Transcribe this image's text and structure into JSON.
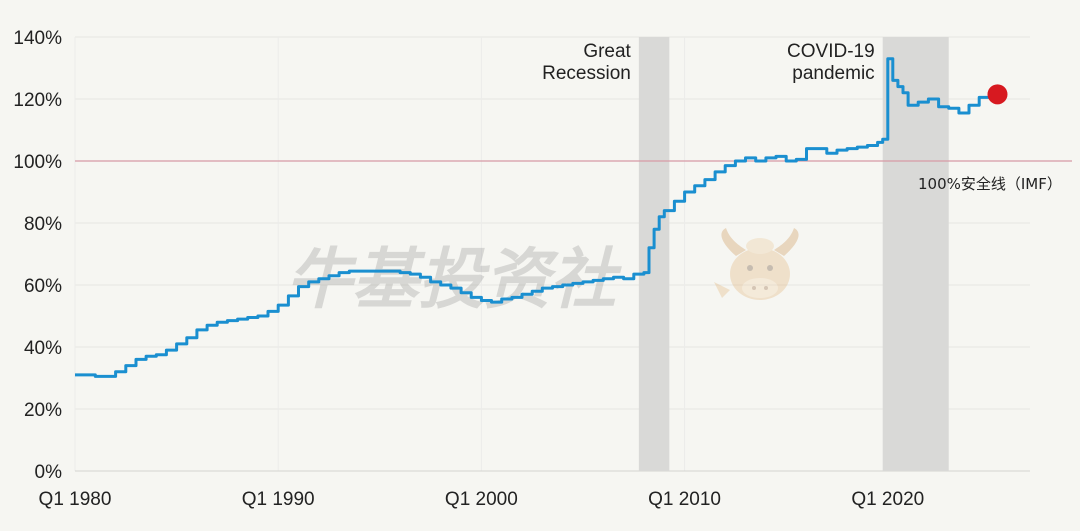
{
  "chart_data": {
    "type": "line",
    "x_tick_labels": [
      "Q1 1980",
      "Q1 1990",
      "Q1 2000",
      "Q1 2010",
      "Q1 2020"
    ],
    "x_ticks": [
      1980,
      1990,
      2000,
      2010,
      2020
    ],
    "xlim": [
      1980,
      2027
    ],
    "y_tick_labels": [
      "0%",
      "20%",
      "40%",
      "60%",
      "80%",
      "100%",
      "120%",
      "140%"
    ],
    "y_ticks": [
      0,
      20,
      40,
      60,
      80,
      100,
      120,
      140
    ],
    "ylim": [
      0,
      140
    ],
    "grid": true,
    "series": [
      {
        "color": "#1a8fd0",
        "x": [
          1980.0,
          1980.5,
          1981.0,
          1981.5,
          1982.0,
          1982.5,
          1983.0,
          1983.5,
          1984.0,
          1984.5,
          1985.0,
          1985.5,
          1986.0,
          1986.5,
          1987.0,
          1987.5,
          1988.0,
          1988.5,
          1989.0,
          1989.5,
          1990.0,
          1990.5,
          1991.0,
          1991.5,
          1992.0,
          1992.5,
          1993.0,
          1993.5,
          1994.0,
          1994.5,
          1995.0,
          1995.5,
          1996.0,
          1996.5,
          1997.0,
          1997.5,
          1998.0,
          1998.5,
          1999.0,
          1999.5,
          2000.0,
          2000.5,
          2001.0,
          2001.5,
          2002.0,
          2002.5,
          2003.0,
          2003.5,
          2004.0,
          2004.5,
          2005.0,
          2005.5,
          2006.0,
          2006.5,
          2007.0,
          2007.5,
          2008.0,
          2008.25,
          2008.5,
          2008.75,
          2009.0,
          2009.5,
          2010.0,
          2010.5,
          2011.0,
          2011.5,
          2012.0,
          2012.5,
          2013.0,
          2013.5,
          2014.0,
          2014.5,
          2015.0,
          2015.5,
          2016.0,
          2016.5,
          2017.0,
          2017.5,
          2018.0,
          2018.5,
          2019.0,
          2019.5,
          2019.75,
          2020.0,
          2020.25,
          2020.5,
          2020.75,
          2021.0,
          2021.5,
          2022.0,
          2022.5,
          2023.0,
          2023.5,
          2024.0,
          2024.5,
          2025.0,
          2025.4
        ],
        "values": [
          31,
          31,
          30.5,
          30.5,
          32,
          34,
          36,
          37,
          37.5,
          39,
          41,
          43,
          45.5,
          47,
          48,
          48.5,
          49,
          49.5,
          50,
          51.5,
          53.5,
          56.5,
          59.5,
          61,
          62,
          63,
          64,
          64.5,
          64.5,
          64.5,
          64.5,
          64.5,
          64,
          63.5,
          62.5,
          61,
          60,
          59,
          57.5,
          56,
          55,
          54.5,
          55.5,
          56,
          57,
          58,
          59,
          59.5,
          60,
          60.5,
          61,
          61.5,
          62,
          62.5,
          62,
          63.5,
          64,
          72,
          78,
          82,
          84,
          87,
          90,
          92,
          94,
          96.5,
          98.5,
          100,
          101,
          100,
          101,
          101.5,
          100,
          100.5,
          104,
          104,
          102.5,
          103.5,
          104,
          104.5,
          105,
          106,
          107,
          133,
          126,
          124,
          122,
          118,
          119,
          120,
          117.5,
          117,
          115.5,
          118,
          120.5,
          121,
          121.5
        ]
      }
    ],
    "end_marker": {
      "x": 2025.4,
      "y": 121.5,
      "color": "#d71920"
    },
    "shaded_regions": [
      {
        "label_lines": [
          "Great",
          "Recession"
        ],
        "x_start": 2007.75,
        "x_end": 2009.25
      },
      {
        "label_lines": [
          "COVID-19",
          "pandemic"
        ],
        "x_start": 2019.75,
        "x_end": 2023.0
      }
    ],
    "reference_line": {
      "y": 100,
      "label": "100%安全线（IMF）",
      "color": "#d79aa6"
    },
    "watermark": {
      "text": "牛基投资社"
    }
  }
}
